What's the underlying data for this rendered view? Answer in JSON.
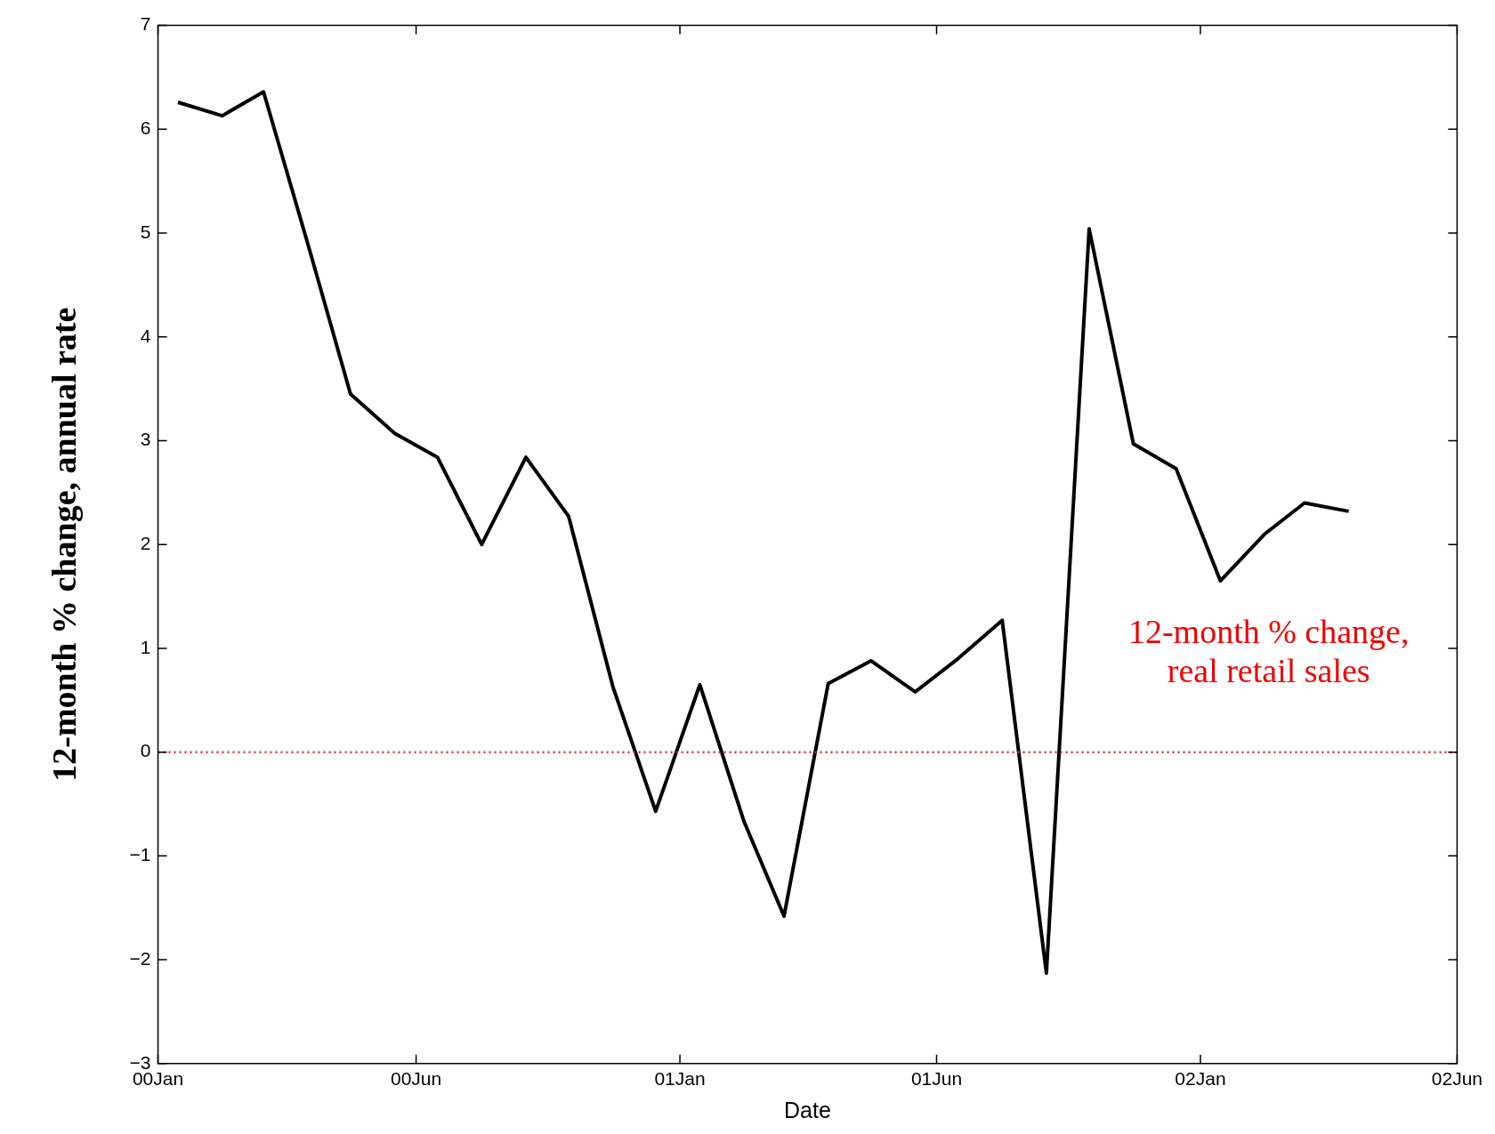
{
  "chart_data": {
    "type": "line",
    "xlabel": "Date",
    "ylabel": "12-month % change, annual rate",
    "x": [
      "2000-01-15",
      "2000-02-15",
      "2000-03-15",
      "2000-04-15",
      "2000-05-15",
      "2000-06-15",
      "2000-07-15",
      "2000-08-15",
      "2000-09-15",
      "2000-10-15",
      "2000-11-15",
      "2000-12-15",
      "2001-01-15",
      "2001-02-15",
      "2001-03-15",
      "2001-04-15",
      "2001-05-15",
      "2001-06-15",
      "2001-07-15",
      "2001-08-15",
      "2001-09-15",
      "2001-10-15",
      "2001-11-15",
      "2001-12-15",
      "2002-01-15",
      "2002-02-15",
      "2002-03-15",
      "2002-04-15"
    ],
    "series": [
      {
        "color": "#000000",
        "values": [
          6.26,
          6.13,
          6.36,
          4.9,
          3.45,
          3.07,
          2.84,
          2.0,
          2.84,
          2.27,
          0.63,
          -0.57,
          0.65,
          -0.67,
          -1.58,
          0.66,
          0.88,
          0.58,
          0.9,
          1.27,
          -2.13,
          5.04,
          2.97,
          2.73,
          1.65,
          2.1,
          2.4,
          2.32
        ]
      }
    ],
    "xlim": [
      "2000-01-01",
      "2002-06-30"
    ],
    "xticks": [
      {
        "value": "2000-01-01",
        "label": "00Jan"
      },
      {
        "value": "2000-06-30",
        "label": "00Jun"
      },
      {
        "value": "2001-01-01",
        "label": "01Jan"
      },
      {
        "value": "2001-06-30",
        "label": "01Jun"
      },
      {
        "value": "2002-01-01",
        "label": "02Jan"
      },
      {
        "value": "2002-06-30",
        "label": "02Jun"
      }
    ],
    "ylim": [
      -3,
      7
    ],
    "yticks": [
      -3,
      -2,
      -1,
      0,
      1,
      2,
      3,
      4,
      5,
      6,
      7
    ],
    "ref_lines": [
      {
        "axis": "y",
        "value": 0,
        "color": "#cc3344",
        "line_style": "dotted"
      }
    ],
    "annotations": [
      "12-month % change, real retail sales"
    ],
    "grid": false,
    "legend": false,
    "marker": "none",
    "line_style": "solid"
  }
}
